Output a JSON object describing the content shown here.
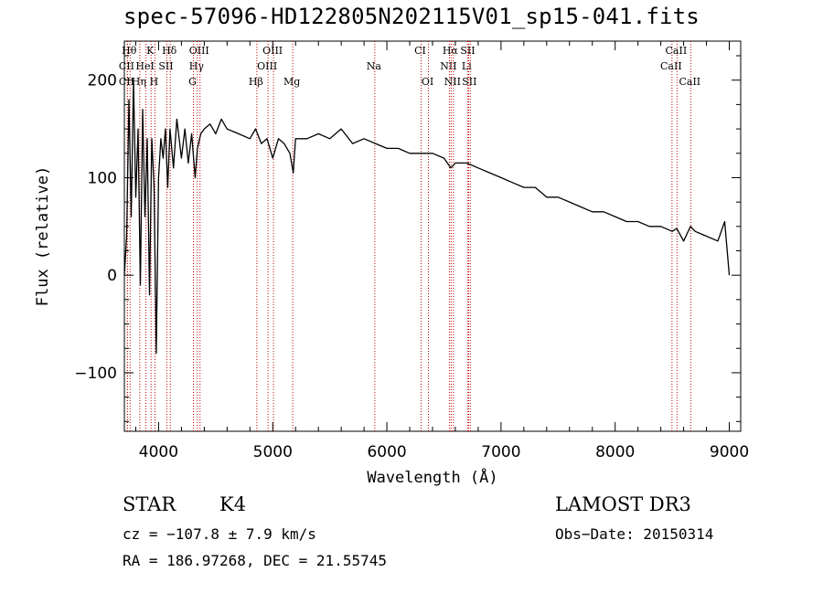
{
  "chart_data": {
    "type": "line",
    "title": "spec-57096-HD122805N202115V01_sp15-041.fits",
    "xlabel": "Wavelength (Å)",
    "ylabel": "Flux (relative)",
    "xlim": [
      3700,
      9100
    ],
    "ylim": [
      -160,
      240
    ],
    "xticks": [
      4000,
      5000,
      6000,
      7000,
      8000,
      9000
    ],
    "yticks": [
      -100,
      0,
      100,
      200
    ],
    "series": [
      {
        "name": "spectrum",
        "x": [
          3700,
          3720,
          3740,
          3760,
          3780,
          3800,
          3820,
          3840,
          3860,
          3880,
          3900,
          3920,
          3940,
          3960,
          3980,
          4000,
          4020,
          4040,
          4060,
          4080,
          4100,
          4130,
          4160,
          4200,
          4230,
          4260,
          4290,
          4320,
          4340,
          4370,
          4400,
          4450,
          4500,
          4550,
          4600,
          4700,
          4800,
          4850,
          4900,
          4950,
          5000,
          5050,
          5100,
          5150,
          5180,
          5200,
          5300,
          5400,
          5500,
          5600,
          5700,
          5800,
          5900,
          6000,
          6100,
          6200,
          6300,
          6400,
          6500,
          6560,
          6600,
          6700,
          6800,
          6900,
          7000,
          7100,
          7200,
          7300,
          7400,
          7500,
          7600,
          7700,
          7800,
          7900,
          8000,
          8100,
          8200,
          8300,
          8400,
          8500,
          8540,
          8600,
          8660,
          8700,
          8800,
          8900,
          8960,
          9000
        ],
        "values": [
          0,
          40,
          180,
          60,
          200,
          80,
          150,
          -10,
          170,
          60,
          140,
          -20,
          140,
          90,
          -80,
          100,
          140,
          120,
          150,
          90,
          150,
          110,
          160,
          120,
          150,
          115,
          145,
          100,
          130,
          145,
          150,
          155,
          145,
          160,
          150,
          145,
          140,
          150,
          135,
          140,
          120,
          140,
          135,
          125,
          105,
          140,
          140,
          145,
          140,
          150,
          135,
          140,
          135,
          130,
          130,
          125,
          125,
          125,
          120,
          110,
          115,
          115,
          110,
          105,
          100,
          95,
          90,
          90,
          80,
          80,
          75,
          70,
          65,
          65,
          60,
          55,
          55,
          50,
          50,
          45,
          48,
          35,
          50,
          45,
          40,
          35,
          55,
          0
        ]
      }
    ],
    "lines": [
      {
        "name": "CII",
        "x": 3727,
        "row": 3
      },
      {
        "name": "CII",
        "x": 3727,
        "row": 2
      },
      {
        "name": "Hθ",
        "x": 3750,
        "row": 1
      },
      {
        "name": "Hη",
        "x": 3835,
        "row": 3
      },
      {
        "name": "HeI",
        "x": 3889,
        "row": 2
      },
      {
        "name": "K",
        "x": 3934,
        "row": 1
      },
      {
        "name": "H",
        "x": 3968,
        "row": 3
      },
      {
        "name": "SII",
        "x": 4072,
        "row": 2
      },
      {
        "name": "Hδ",
        "x": 4102,
        "row": 1
      },
      {
        "name": "G",
        "x": 4305,
        "row": 3
      },
      {
        "name": "Hγ",
        "x": 4340,
        "row": 2
      },
      {
        "name": "OIII",
        "x": 4363,
        "row": 1
      },
      {
        "name": "Hβ",
        "x": 4861,
        "row": 3
      },
      {
        "name": "OIII",
        "x": 4959,
        "row": 2
      },
      {
        "name": "OIII",
        "x": 5007,
        "row": 1
      },
      {
        "name": "Mg",
        "x": 5175,
        "row": 3
      },
      {
        "name": "Na",
        "x": 5894,
        "row": 2
      },
      {
        "name": "CI",
        "x": 6300,
        "row": 1
      },
      {
        "name": "OI",
        "x": 6364,
        "row": 3
      },
      {
        "name": "NII",
        "x": 6548,
        "row": 2
      },
      {
        "name": "Hα",
        "x": 6563,
        "row": 1
      },
      {
        "name": "NII",
        "x": 6583,
        "row": 3
      },
      {
        "name": "Li",
        "x": 6707,
        "row": 2
      },
      {
        "name": "SII",
        "x": 6716,
        "row": 1
      },
      {
        "name": "SII",
        "x": 6731,
        "row": 3
      },
      {
        "name": "CaII",
        "x": 8498,
        "row": 2
      },
      {
        "name": "CaII",
        "x": 8542,
        "row": 1
      },
      {
        "name": "CaII",
        "x": 8662,
        "row": 3
      }
    ],
    "colors": {
      "spectrum": "#000000",
      "lines": "#c00000"
    }
  },
  "info": {
    "objtype": "STAR",
    "subclass": "K4",
    "survey": "LAMOST DR3",
    "cz": "cz = −107.8 ± 7.9 km/s",
    "obsdate": "Obs−Date: 20150314",
    "radec": "RA = 186.97268, DEC =  21.55745"
  }
}
